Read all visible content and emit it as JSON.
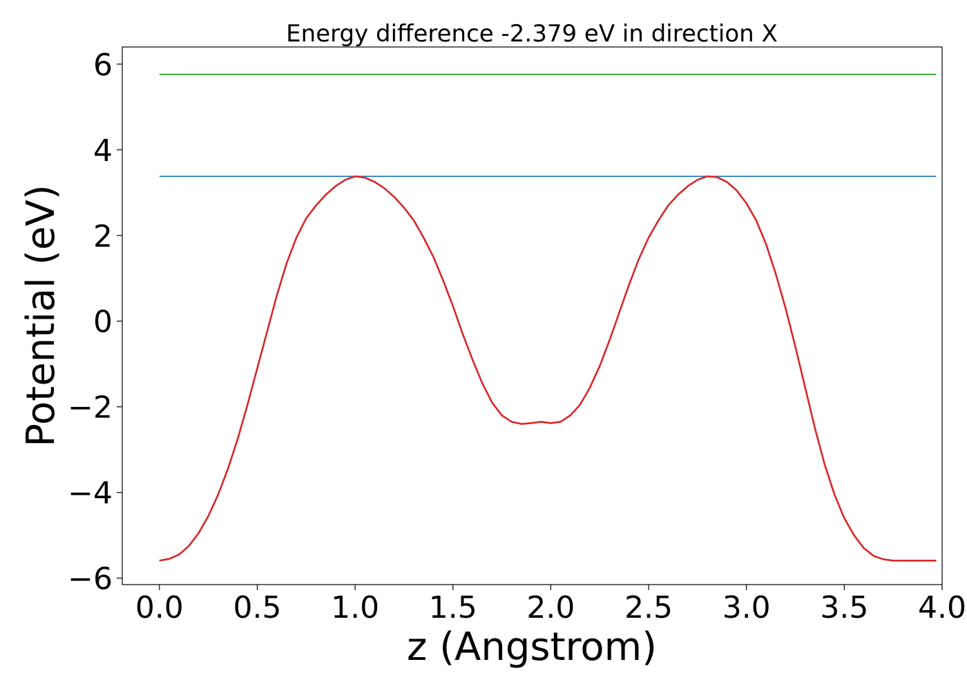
{
  "chart_data": {
    "type": "line",
    "title": "Energy difference -2.379 eV in direction X",
    "xlabel": "z (Angstrom)",
    "ylabel": "Potential (eV)",
    "xlim": [
      -0.19,
      4.0
    ],
    "ylim": [
      -6.15,
      6.4
    ],
    "xticks": [
      0.0,
      0.5,
      1.0,
      1.5,
      2.0,
      2.5,
      3.0,
      3.5,
      4.0
    ],
    "xtick_labels": [
      "0.0",
      "0.5",
      "1.0",
      "1.5",
      "2.0",
      "2.5",
      "3.0",
      "3.5",
      "4.0"
    ],
    "yticks": [
      -6,
      -4,
      -2,
      0,
      2,
      4,
      6
    ],
    "ytick_labels": [
      "−6",
      "−4",
      "−2",
      "0",
      "2",
      "4",
      "6"
    ],
    "grid": false,
    "series": [
      {
        "color": "#2ca02c",
        "x": [
          0.0,
          3.97
        ],
        "y": [
          5.76,
          5.76
        ]
      },
      {
        "color": "#1f77b4",
        "x": [
          0.0,
          3.97
        ],
        "y": [
          3.38,
          3.38
        ]
      },
      {
        "color": "#d62728",
        "x": [
          0.0,
          0.05,
          0.1,
          0.15,
          0.2,
          0.25,
          0.3,
          0.35,
          0.4,
          0.45,
          0.5,
          0.55,
          0.6,
          0.65,
          0.7,
          0.75,
          0.8,
          0.85,
          0.9,
          0.95,
          1.0,
          1.05,
          1.1,
          1.15,
          1.2,
          1.25,
          1.3,
          1.35,
          1.4,
          1.45,
          1.5,
          1.55,
          1.6,
          1.65,
          1.7,
          1.75,
          1.8,
          1.85,
          1.9,
          1.95,
          2.0,
          2.05,
          2.1,
          2.15,
          2.2,
          2.25,
          2.3,
          2.35,
          2.4,
          2.45,
          2.5,
          2.55,
          2.6,
          2.65,
          2.7,
          2.75,
          2.8,
          2.85,
          2.9,
          2.95,
          3.0,
          3.05,
          3.1,
          3.15,
          3.2,
          3.25,
          3.3,
          3.35,
          3.4,
          3.45,
          3.5,
          3.55,
          3.6,
          3.65,
          3.7,
          3.75,
          3.8,
          3.85,
          3.9,
          3.95,
          3.97
        ],
        "y": [
          -5.59,
          -5.55,
          -5.45,
          -5.25,
          -4.95,
          -4.55,
          -4.05,
          -3.45,
          -2.75,
          -1.95,
          -1.1,
          -0.25,
          0.6,
          1.35,
          1.95,
          2.4,
          2.7,
          2.95,
          3.15,
          3.3,
          3.38,
          3.35,
          3.25,
          3.1,
          2.9,
          2.65,
          2.35,
          1.95,
          1.5,
          0.95,
          0.35,
          -0.3,
          -0.9,
          -1.45,
          -1.9,
          -2.2,
          -2.35,
          -2.4,
          -2.38,
          -2.35,
          -2.38,
          -2.35,
          -2.2,
          -1.95,
          -1.55,
          -1.05,
          -0.45,
          0.2,
          0.85,
          1.45,
          1.95,
          2.35,
          2.7,
          2.95,
          3.15,
          3.3,
          3.38,
          3.36,
          3.25,
          3.05,
          2.75,
          2.35,
          1.8,
          1.1,
          0.3,
          -0.6,
          -1.55,
          -2.5,
          -3.35,
          -4.05,
          -4.6,
          -5.0,
          -5.3,
          -5.48,
          -5.56,
          -5.59,
          -5.59,
          -5.59,
          -5.59,
          -5.59,
          -5.59
        ]
      }
    ]
  }
}
